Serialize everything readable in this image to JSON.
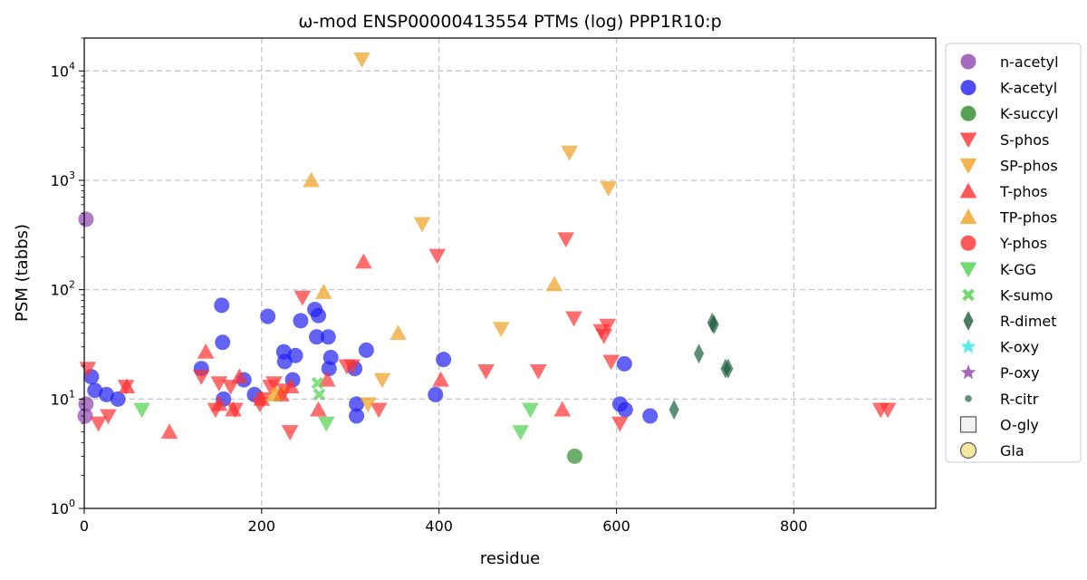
{
  "chart_data": {
    "type": "scatter",
    "title": "ω-mod ENSP00000413554 PTMs (log) PPP1R10:p",
    "xlabel": "residue",
    "ylabel": "PSM (tabbs)",
    "xlim": [
      0,
      960
    ],
    "ylim": [
      1,
      20000
    ],
    "yscale": "log",
    "grid": true,
    "legend_position": "right",
    "x_ticks": [
      {
        "value": 0,
        "label": "0"
      },
      {
        "value": 200,
        "label": "200"
      },
      {
        "value": 400,
        "label": "400"
      },
      {
        "value": 600,
        "label": "600"
      },
      {
        "value": 800,
        "label": "800"
      }
    ],
    "y_ticks": [
      {
        "value": 1,
        "base": "10",
        "exp": "0"
      },
      {
        "value": 10,
        "base": "10",
        "exp": "1"
      },
      {
        "value": 100,
        "base": "10",
        "exp": "2"
      },
      {
        "value": 1000,
        "base": "10",
        "exp": "3"
      },
      {
        "value": 10000,
        "base": "10",
        "exp": "4"
      }
    ],
    "series": [
      {
        "name": "n-acetyl",
        "marker": "circle",
        "color": "#8e44ad",
        "points": [
          [
            2,
            440
          ],
          [
            2,
            9
          ],
          [
            1,
            7
          ]
        ]
      },
      {
        "name": "K-acetyl",
        "marker": "circle",
        "color": "#2020f0",
        "points": [
          [
            8,
            16
          ],
          [
            12,
            12
          ],
          [
            25,
            11
          ],
          [
            38,
            10
          ],
          [
            132,
            19
          ],
          [
            155,
            72
          ],
          [
            156,
            33
          ],
          [
            157,
            10
          ],
          [
            180,
            15
          ],
          [
            192,
            11
          ],
          [
            207,
            57
          ],
          [
            225,
            27
          ],
          [
            226,
            22
          ],
          [
            235,
            15
          ],
          [
            238,
            25
          ],
          [
            244,
            52
          ],
          [
            260,
            66
          ],
          [
            264,
            58
          ],
          [
            262,
            37
          ],
          [
            275,
            37
          ],
          [
            278,
            24
          ],
          [
            276,
            19
          ],
          [
            305,
            19
          ],
          [
            307,
            9
          ],
          [
            307,
            7
          ],
          [
            318,
            28
          ],
          [
            396,
            11
          ],
          [
            405,
            23
          ],
          [
            604,
            9
          ],
          [
            610,
            8
          ],
          [
            609,
            21
          ],
          [
            638,
            7
          ]
        ]
      },
      {
        "name": "K-succyl",
        "marker": "circle",
        "color": "#2e8b2e",
        "points": [
          [
            553,
            3
          ]
        ]
      },
      {
        "name": "S-phos",
        "marker": "tri-down",
        "color": "#ff3030",
        "points": [
          [
            4,
            19
          ],
          [
            16,
            6
          ],
          [
            27,
            7
          ],
          [
            47,
            13
          ],
          [
            132,
            16
          ],
          [
            148,
            8
          ],
          [
            152,
            14
          ],
          [
            165,
            13
          ],
          [
            170,
            8
          ],
          [
            198,
            9
          ],
          [
            202,
            10
          ],
          [
            210,
            13
          ],
          [
            214,
            14
          ],
          [
            226,
            12
          ],
          [
            232,
            5
          ],
          [
            246,
            85
          ],
          [
            296,
            20
          ],
          [
            302,
            20
          ],
          [
            332,
            8
          ],
          [
            398,
            205
          ],
          [
            453,
            18
          ],
          [
            512,
            18
          ],
          [
            543,
            290
          ],
          [
            552,
            55
          ],
          [
            583,
            42
          ],
          [
            586,
            38
          ],
          [
            590,
            47
          ],
          [
            594,
            22
          ],
          [
            604,
            6
          ],
          [
            898,
            8
          ],
          [
            906,
            8
          ]
        ]
      },
      {
        "name": "SP-phos",
        "marker": "tri-down",
        "color": "#f0a020",
        "points": [
          [
            313,
            12800
          ],
          [
            547,
            1800
          ],
          [
            591,
            850
          ],
          [
            381,
            400
          ],
          [
            470,
            44
          ],
          [
            336,
            15
          ],
          [
            320,
            9
          ],
          [
            222,
            11
          ]
        ]
      },
      {
        "name": "T-phos",
        "marker": "tri-up",
        "color": "#ff3030",
        "points": [
          [
            48,
            13
          ],
          [
            96,
            5
          ],
          [
            137,
            27
          ],
          [
            152,
            9
          ],
          [
            168,
            8
          ],
          [
            175,
            16
          ],
          [
            200,
            10
          ],
          [
            222,
            11
          ],
          [
            233,
            13
          ],
          [
            264,
            8
          ],
          [
            274,
            15
          ],
          [
            315,
            180
          ],
          [
            402,
            15
          ],
          [
            539,
            8
          ]
        ]
      },
      {
        "name": "TP-phos",
        "marker": "tri-up",
        "color": "#f0a020",
        "points": [
          [
            256,
            1000
          ],
          [
            270,
            95
          ],
          [
            354,
            40
          ],
          [
            530,
            112
          ],
          [
            213,
            11
          ]
        ]
      },
      {
        "name": "Y-phos",
        "marker": "circle",
        "color": "#ff3030",
        "points": []
      },
      {
        "name": "K-GG",
        "marker": "tri-down",
        "color": "#50d050",
        "points": [
          [
            65,
            8
          ],
          [
            273,
            6
          ],
          [
            492,
            5
          ],
          [
            503,
            8
          ]
        ]
      },
      {
        "name": "K-sumo",
        "marker": "x",
        "color": "#50d050",
        "points": [
          [
            263,
            14
          ],
          [
            265,
            11
          ]
        ]
      },
      {
        "name": "R-dimet",
        "marker": "diamond",
        "color": "#1a5c3a",
        "points": [
          [
            665,
            8
          ],
          [
            693,
            26
          ],
          [
            708,
            50
          ],
          [
            710,
            48
          ],
          [
            723,
            19
          ],
          [
            726,
            19
          ]
        ]
      },
      {
        "name": "K-oxy",
        "marker": "star",
        "color": "#30e8e8",
        "points": []
      },
      {
        "name": "P-oxy",
        "marker": "star",
        "color": "#8e44ad",
        "points": []
      },
      {
        "name": "R-citr",
        "marker": "small-circle",
        "color": "#3a7a5a",
        "points": []
      },
      {
        "name": "O-gly",
        "marker": "square",
        "color": "#f2f2f2",
        "points": []
      },
      {
        "name": "Gla",
        "marker": "circle-outline",
        "color": "#f5e6a0",
        "points": []
      }
    ]
  }
}
